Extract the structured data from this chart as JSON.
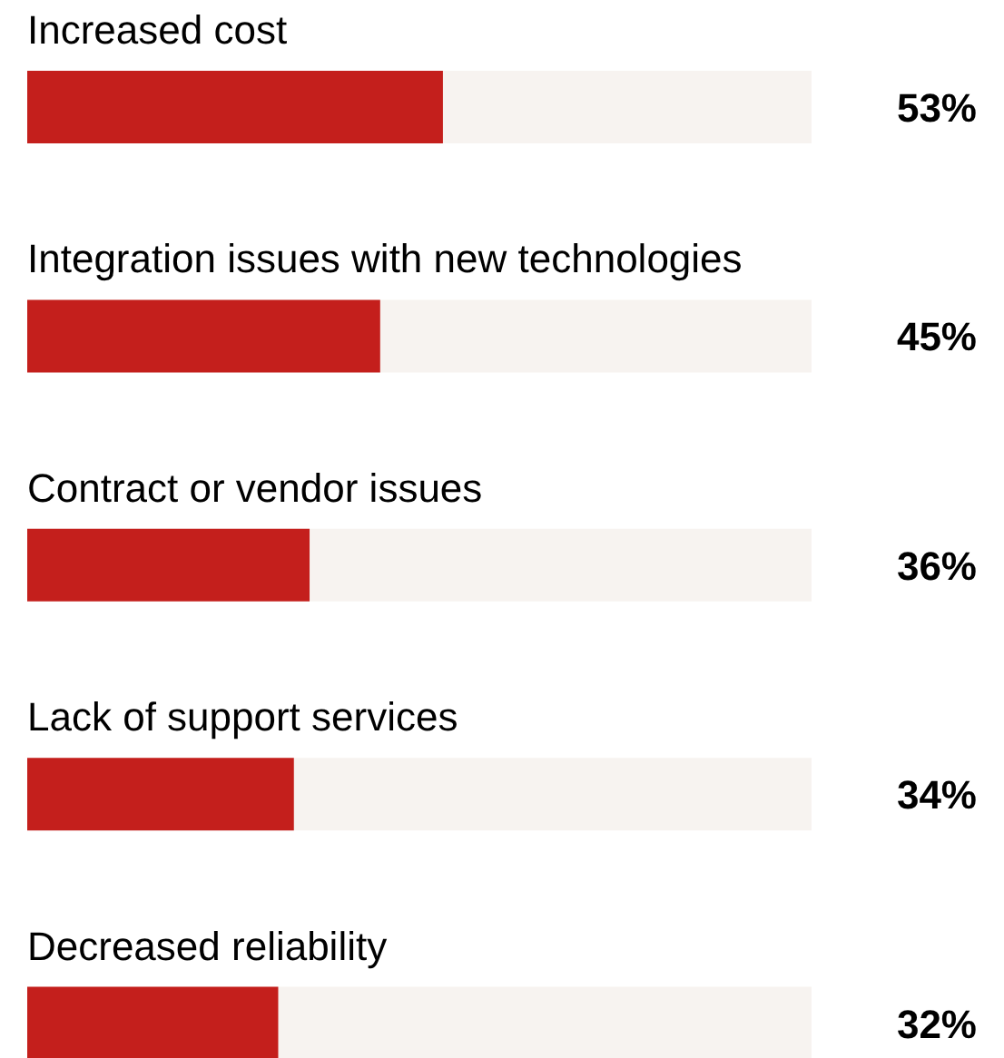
{
  "chart_data": {
    "type": "bar",
    "orientation": "horizontal",
    "categories": [
      "Increased cost",
      "Integration issues with new technologies",
      "Contract or vendor issues",
      "Lack of support services",
      "Decreased reliability"
    ],
    "values": [
      53,
      45,
      36,
      34,
      32
    ],
    "value_labels": [
      "53%",
      "45%",
      "36%",
      "34%",
      "32%"
    ],
    "color": "#c41f1c",
    "xlim": [
      0,
      100
    ]
  }
}
